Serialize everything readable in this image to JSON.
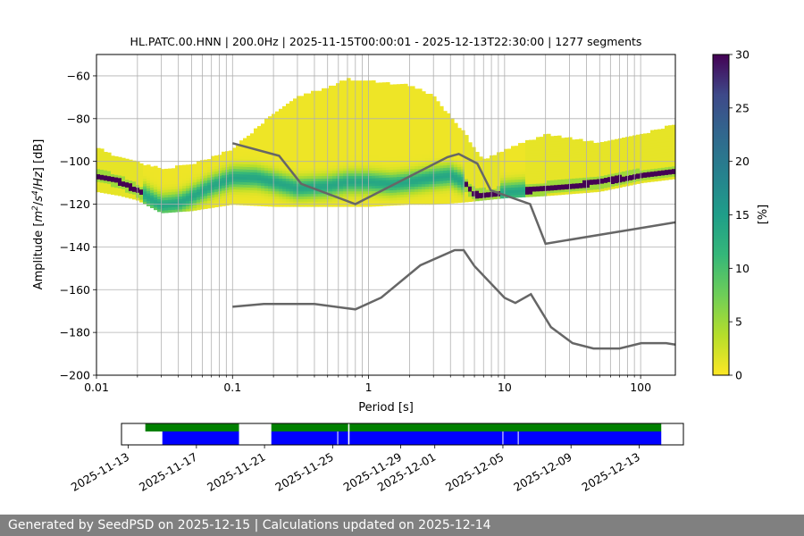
{
  "chart_data": [
    {
      "type": "heatmap",
      "title": "HL.PATC.00.HNN | 200.0Hz | 2025-11-15T00:00:01 - 2025-12-13T22:30:00 | 1277 segments",
      "xlabel": "Period [s]",
      "ylabel_parts": [
        "Amplitude [",
        "m",
        "2",
        "/",
        "s",
        "4",
        "/",
        "Hz",
        "] [dB]"
      ],
      "xscale": "log",
      "xlim": [
        0.01,
        180
      ],
      "ylim": [
        -200,
        -50
      ],
      "x_ticks": [
        0.01,
        0.1,
        1,
        10,
        100
      ],
      "x_tick_labels": [
        "0.01",
        "0.1",
        "1",
        "10",
        "100"
      ],
      "y_ticks": [
        -200,
        -180,
        -160,
        -140,
        -120,
        -100,
        -80,
        -60
      ],
      "y_tick_labels": [
        "−200",
        "−180",
        "−160",
        "−140",
        "−120",
        "−100",
        "−80",
        "−60"
      ],
      "grid": "x-major-and-minor + y-major",
      "colormap": "viridis_r",
      "colorbar": {
        "label": "[%]",
        "range": [
          0,
          30
        ],
        "ticks": [
          0,
          5,
          10,
          15,
          20,
          25,
          30
        ]
      },
      "mode_curve": {
        "period": [
          0.01,
          0.012,
          0.015,
          0.02,
          0.025,
          0.03,
          0.04,
          0.05,
          0.07,
          0.1,
          0.15,
          0.2,
          0.3,
          0.5,
          0.7,
          1,
          1.5,
          2,
          3,
          4,
          5,
          6,
          8,
          10,
          15,
          20,
          30,
          50,
          100,
          180
        ],
        "db": [
          -107,
          -108,
          -110,
          -114,
          -118,
          -121,
          -120,
          -117,
          -112,
          -108,
          -108,
          -110,
          -113,
          -112,
          -110,
          -110,
          -111,
          -110,
          -108,
          -107,
          -110,
          -116,
          -116,
          -115,
          -114,
          -113,
          -112,
          -110,
          -107,
          -105
        ]
      },
      "spread": {
        "period": [
          0.01,
          0.015,
          0.02,
          0.03,
          0.05,
          0.1,
          0.2,
          0.3,
          0.5,
          0.7,
          1,
          2,
          3,
          5,
          7,
          10,
          20,
          50,
          100,
          180
        ],
        "upper_db": [
          -94,
          -99,
          -101,
          -104,
          -102,
          -95,
          -78,
          -70,
          -66,
          -62,
          -63,
          -65,
          -70,
          -87,
          -100,
          -95,
          -88,
          -92,
          -88,
          -83
        ],
        "lower_db": [
          -114,
          -116,
          -118,
          -124,
          -123,
          -120,
          -121,
          -121,
          -121,
          -121,
          -121,
          -120,
          -120,
          -119,
          -118,
          -117,
          -116,
          -114,
          -110,
          -108
        ]
      },
      "reference_curves": [
        {
          "period": [
            0.1,
            0.17,
            0.4,
            0.8,
            1.24,
            2.4,
            4.3,
            5,
            6,
            10,
            12,
            15.6,
            21.9,
            31.6,
            45,
            70,
            101,
            154,
            180
          ],
          "db": [
            -168,
            -166.7,
            -166.7,
            -169.2,
            -163.7,
            -148.6,
            -141.5,
            -141.5,
            -149,
            -163.8,
            -166.2,
            -162.1,
            -177.5,
            -185,
            -187.5,
            -187.5,
            -185,
            -185,
            -185.7
          ]
        },
        {
          "period": [
            0.1,
            0.22,
            0.32,
            0.8,
            3.8,
            4.6,
            6.3,
            7.9,
            15.4,
            20,
            180
          ],
          "db": [
            -91.5,
            -97.4,
            -110.5,
            -120,
            -98,
            -96.5,
            -101,
            -113.5,
            -120,
            -138.5,
            -128.5
          ]
        }
      ]
    },
    {
      "type": "timeline",
      "x_tick_labels": [
        "2025-11-13",
        "2025-11-17",
        "2025-11-21",
        "2025-11-25",
        "2025-11-29",
        "2025-12-01",
        "2025-12-05",
        "2025-12-09",
        "2025-12-13"
      ],
      "x_tick_days": [
        0,
        4,
        8,
        12,
        16,
        18,
        22,
        26,
        30
      ],
      "xlim_days": [
        -0.4,
        32.6
      ],
      "available_ranges_days": [
        [
          1.0,
          6.5
        ],
        [
          8.4,
          31.3
        ]
      ],
      "processed_ranges_days": [
        [
          2.0,
          6.5
        ],
        [
          8.4,
          31.3
        ]
      ],
      "gaps_days": [
        12.3,
        12.95,
        22.0,
        22.9
      ],
      "available_color": "#008000",
      "processed_color": "#0000ff"
    }
  ],
  "footer": "Generated by SeedPSD on 2025-12-15 | Calculations updated on 2025-12-14"
}
